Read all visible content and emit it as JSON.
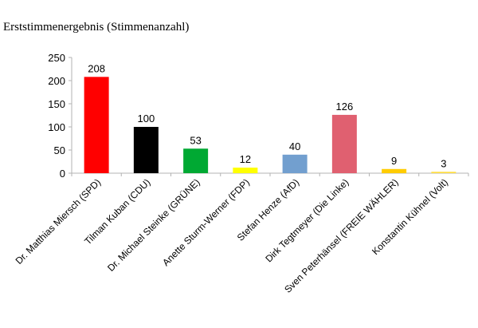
{
  "chart_data": {
    "type": "bar",
    "title": "Erststimmenergebnis (Stimmenanzahl)",
    "xlabel": "",
    "ylabel": "",
    "ylim": [
      0,
      250
    ],
    "yticks": [
      0,
      50,
      100,
      150,
      200,
      250
    ],
    "grid": false,
    "legend": "none",
    "categories": [
      "Dr. Matthias Miersch (SPD)",
      "Tilman Kuban (CDU)",
      "Dr. Michael Steinke (GRÜNE)",
      "Anette Sturm-Werner (FDP)",
      "Stefan Henze (AfD)",
      "Dirk Tegtmeyer (Die Linke)",
      "Sven Peterhänsel (FREIE WÄHLER)",
      "Konstantin Kühnel (Volt)"
    ],
    "values": [
      208,
      100,
      53,
      12,
      40,
      126,
      9,
      3
    ],
    "colors": [
      "#ff0000",
      "#000000",
      "#00a933",
      "#ffff00",
      "#729fcf",
      "#e06070",
      "#ffcc00",
      "#ffdd44"
    ]
  }
}
